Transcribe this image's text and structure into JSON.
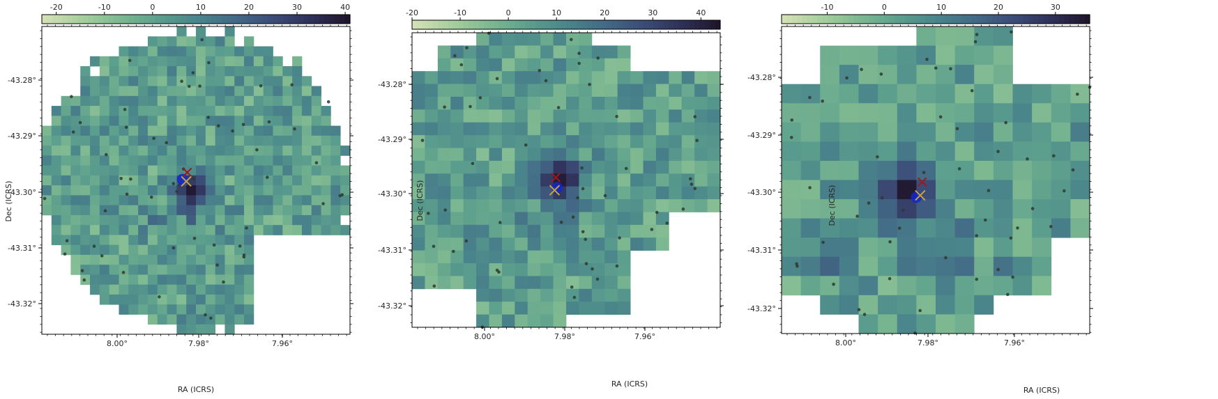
{
  "chart_data": [
    {
      "type": "heatmap",
      "xlabel": "RA (ICRS)",
      "ylabel": "Dec (ICRS)",
      "colorbar": {
        "range": [
          -23,
          41
        ],
        "ticks": [
          -20,
          -10,
          0,
          10,
          20,
          30,
          40
        ]
      },
      "x_ticks": [
        "8.00°",
        "7.98°",
        "7.96°"
      ],
      "y_ticks": [
        "-43.28°",
        "-43.29°",
        "-43.30°",
        "-43.31°",
        "-43.32°"
      ],
      "grid": {
        "cols": 32,
        "rows": 31
      },
      "shape": "circle",
      "hotspot": {
        "col": 15,
        "row": 16,
        "value": 40
      },
      "markers": {
        "red_cross": {
          "col": 15.1,
          "row": 14.7
        },
        "yellow_cross": {
          "col": 15.0,
          "row": 15.6
        },
        "blue_dot": {
          "col": 14.6,
          "row": 15.4
        }
      },
      "points": 60,
      "seed": 11
    },
    {
      "type": "heatmap",
      "xlabel": "RA (ICRS)",
      "ylabel": "Dec (ICRS)",
      "colorbar": {
        "range": [
          -20,
          44
        ],
        "ticks": [
          -20,
          -10,
          0,
          10,
          20,
          30,
          40
        ]
      },
      "x_ticks": [
        "8.00°",
        "7.98°",
        "7.96°"
      ],
      "y_ticks": [
        "-43.28°",
        "-43.29°",
        "-43.30°",
        "-43.31°",
        "-43.32°"
      ],
      "grid": {
        "cols": 24,
        "rows": 23
      },
      "shape": "blob",
      "hotspot": {
        "col": 11,
        "row": 11,
        "value": 42
      },
      "markers": {
        "red_cross": {
          "col": 11.2,
          "row": 11.3
        },
        "yellow_cross": {
          "col": 11.1,
          "row": 12.3
        },
        "blue_dot": {
          "col": 11.3,
          "row": 12.1
        }
      },
      "points": 55,
      "seed": 29
    },
    {
      "type": "heatmap",
      "xlabel": "RA (ICRS)",
      "ylabel": "Dec (ICRS)",
      "colorbar": {
        "range": [
          -18,
          36
        ],
        "ticks": [
          -10,
          0,
          10,
          20,
          30
        ]
      },
      "x_ticks": [
        "8.00°",
        "7.98°",
        "7.96°"
      ],
      "y_ticks": [
        "-43.28°",
        "-43.29°",
        "-43.30°",
        "-43.31°",
        "-43.32°"
      ],
      "grid": {
        "cols": 16,
        "rows": 16
      },
      "shape": "rect",
      "hotspot": {
        "col": 6,
        "row": 8,
        "value": 35
      },
      "markers": {
        "red_cross": {
          "col": 7.3,
          "row": 8.1
        },
        "yellow_cross": {
          "col": 7.2,
          "row": 8.8
        },
        "blue_dot": {
          "col": 7.0,
          "row": 8.9
        }
      },
      "points": 55,
      "seed": 53
    }
  ],
  "colors": {
    "cmap": [
      "#d3e0b5",
      "#a6cf9e",
      "#7db891",
      "#5c9f8d",
      "#4a858b",
      "#436a86",
      "#3c4d78",
      "#2f3259",
      "#20162c"
    ],
    "red_cross": "#a01818",
    "yellow_cross": "#c9a43a",
    "blue_dot": "#1428cc",
    "source_point": "#2e3a2e"
  }
}
